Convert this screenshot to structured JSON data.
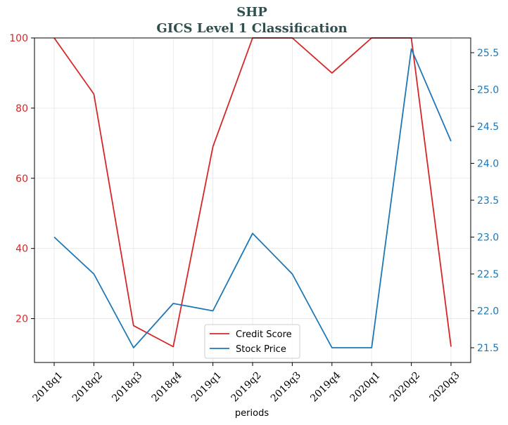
{
  "chart_data": {
    "type": "line",
    "title": "SHP",
    "subtitle": "GICS Level 1 Classification",
    "xlabel": "periods",
    "categories": [
      "2018q1",
      "2018q2",
      "2018q3",
      "2018q4",
      "2019q1",
      "2019q2",
      "2019q3",
      "2019q4",
      "2020q1",
      "2020q2",
      "2020q3"
    ],
    "series": [
      {
        "name": "Credit Score",
        "axis": "left",
        "color": "#d62728",
        "values": [
          100,
          84,
          18,
          12,
          69,
          100,
          100,
          90,
          100,
          100,
          12
        ]
      },
      {
        "name": "Stock Price",
        "axis": "right",
        "color": "#1f77b4",
        "values": [
          23.0,
          22.5,
          21.5,
          22.1,
          22.0,
          23.05,
          22.5,
          21.5,
          21.5,
          25.55,
          24.3
        ]
      }
    ],
    "y_left": {
      "ylim": [
        7.5,
        100
      ],
      "ticks": [
        20,
        40,
        60,
        80,
        100
      ],
      "color": "#d62728"
    },
    "y_right": {
      "ylim": [
        21.3,
        25.7
      ],
      "ticks": [
        21.5,
        22.0,
        22.5,
        23.0,
        23.5,
        24.0,
        24.5,
        25.0,
        25.5
      ],
      "tick_labels": [
        "21.5",
        "22.0",
        "22.5",
        "23.0",
        "23.5",
        "24.0",
        "24.5",
        "25.0",
        "25.5"
      ],
      "color": "#1f77b4"
    },
    "grid": true,
    "legend_position": "bottom-center"
  }
}
